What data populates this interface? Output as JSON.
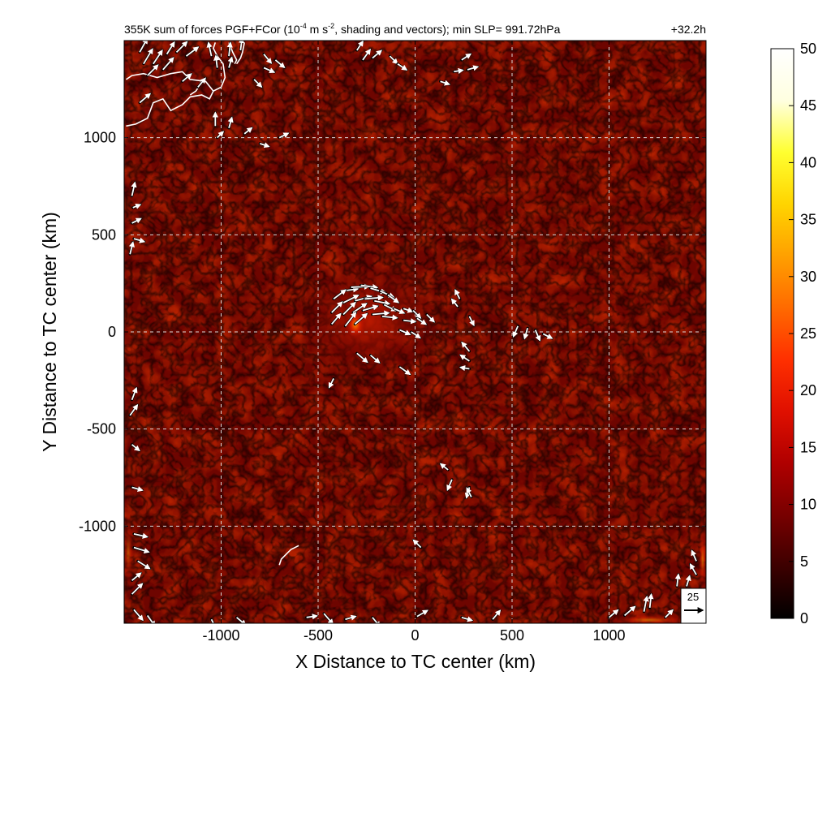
{
  "chart_data": {
    "type": "heatmap",
    "title": "355K sum of forces PGF+FCor (10",
    "title_exp1": "-4",
    "title_mid": " m s",
    "title_exp2": "-2",
    "title_tail": ", shading and vectors); min SLP= 991.72hPa",
    "time_label": "+32.2h",
    "xlabel": "X Distance to TC center (km)",
    "ylabel": "Y Distance to TC center (km)",
    "xlim": [
      -1500,
      1500
    ],
    "ylim": [
      -1500,
      1500
    ],
    "xticks": [
      -1000,
      -500,
      0,
      500,
      1000
    ],
    "xtick_labels": [
      "-1000",
      "-500",
      "0",
      "500",
      "1000"
    ],
    "yticks": [
      -1000,
      -500,
      0,
      500,
      1000
    ],
    "ytick_labels": [
      "-1000",
      "-500",
      "0",
      "500",
      "1000"
    ],
    "grid": true,
    "colorbar": {
      "min": 0,
      "max": 50,
      "ticks": [
        0,
        5,
        10,
        15,
        20,
        25,
        30,
        35,
        40,
        45,
        50
      ],
      "tick_labels": [
        "0",
        "5",
        "10",
        "15",
        "20",
        "25",
        "30",
        "35",
        "40",
        "45",
        "50"
      ],
      "colors": [
        "#000000",
        "#3c0000",
        "#780000",
        "#b00000",
        "#e01000",
        "#ff3000",
        "#ff6a00",
        "#ffa000",
        "#ffd400",
        "#ffff30",
        "#ffffe0",
        "#ffffff"
      ]
    },
    "reference_vector": {
      "value": 25,
      "label": "25"
    },
    "vectors": [
      {
        "x": -380,
        "y": 210,
        "u": 22,
        "v": 3
      },
      {
        "x": -330,
        "y": 230,
        "u": 24,
        "v": 1
      },
      {
        "x": -280,
        "y": 240,
        "u": 22,
        "v": -3
      },
      {
        "x": -230,
        "y": 225,
        "u": 20,
        "v": -6
      },
      {
        "x": -180,
        "y": 210,
        "u": 18,
        "v": -8
      },
      {
        "x": -140,
        "y": 190,
        "u": 14,
        "v": -10
      },
      {
        "x": -420,
        "y": 170,
        "u": 16,
        "v": 12
      },
      {
        "x": -370,
        "y": 150,
        "u": 20,
        "v": 10
      },
      {
        "x": -310,
        "y": 160,
        "u": 22,
        "v": 6
      },
      {
        "x": -260,
        "y": 170,
        "u": 24,
        "v": 2
      },
      {
        "x": -210,
        "y": 160,
        "u": 20,
        "v": -4
      },
      {
        "x": -160,
        "y": 140,
        "u": 16,
        "v": -8
      },
      {
        "x": -110,
        "y": 120,
        "u": 14,
        "v": -6
      },
      {
        "x": -60,
        "y": 120,
        "u": 12,
        "v": -4
      },
      {
        "x": -10,
        "y": 110,
        "u": 10,
        "v": -10
      },
      {
        "x": -430,
        "y": 100,
        "u": 14,
        "v": 14
      },
      {
        "x": -370,
        "y": 90,
        "u": 16,
        "v": 16
      },
      {
        "x": -320,
        "y": 100,
        "u": 18,
        "v": 12
      },
      {
        "x": -270,
        "y": 110,
        "u": 20,
        "v": 6
      },
      {
        "x": -220,
        "y": 90,
        "u": 22,
        "v": 2
      },
      {
        "x": -170,
        "y": 80,
        "u": 20,
        "v": -2
      },
      {
        "x": -430,
        "y": 40,
        "u": 12,
        "v": 14
      },
      {
        "x": -360,
        "y": 30,
        "u": 14,
        "v": 18
      },
      {
        "x": -310,
        "y": 40,
        "u": 16,
        "v": 14
      },
      {
        "x": -60,
        "y": 60,
        "u": 16,
        "v": -2
      },
      {
        "x": 10,
        "y": 70,
        "u": 12,
        "v": -8
      },
      {
        "x": 60,
        "y": 90,
        "u": 10,
        "v": -10
      },
      {
        "x": -80,
        "y": 10,
        "u": 14,
        "v": -6
      },
      {
        "x": -20,
        "y": 0,
        "u": 12,
        "v": -8
      },
      {
        "x": 230,
        "y": 170,
        "u": -6,
        "v": 12
      },
      {
        "x": 220,
        "y": 130,
        "u": -8,
        "v": 10
      },
      {
        "x": 280,
        "y": 80,
        "u": 6,
        "v": -12
      },
      {
        "x": 530,
        "y": 30,
        "u": -6,
        "v": -14
      },
      {
        "x": 580,
        "y": 20,
        "u": -4,
        "v": -14
      },
      {
        "x": 620,
        "y": 10,
        "u": 6,
        "v": -14
      },
      {
        "x": 660,
        "y": -10,
        "u": 12,
        "v": -6
      },
      {
        "x": 280,
        "y": -100,
        "u": -10,
        "v": 12
      },
      {
        "x": 280,
        "y": -150,
        "u": -12,
        "v": 8
      },
      {
        "x": 280,
        "y": -190,
        "u": -12,
        "v": 2
      },
      {
        "x": -300,
        "y": -110,
        "u": 14,
        "v": -12
      },
      {
        "x": -230,
        "y": -120,
        "u": 12,
        "v": -10
      },
      {
        "x": -80,
        "y": -180,
        "u": 14,
        "v": -10
      },
      {
        "x": -420,
        "y": -240,
        "u": -6,
        "v": -12
      },
      {
        "x": 170,
        "y": -710,
        "u": -10,
        "v": 8
      },
      {
        "x": 190,
        "y": -760,
        "u": -6,
        "v": -14
      },
      {
        "x": 280,
        "y": -800,
        "u": -4,
        "v": -14
      },
      {
        "x": 290,
        "y": -850,
        "u": -6,
        "v": 12
      },
      {
        "x": 30,
        "y": -1110,
        "u": -10,
        "v": 10
      },
      {
        "x": -1280,
        "y": 1430,
        "u": 10,
        "v": 16
      },
      {
        "x": -1230,
        "y": 1440,
        "u": 14,
        "v": 14
      },
      {
        "x": -1180,
        "y": 1420,
        "u": 16,
        "v": 12
      },
      {
        "x": -1350,
        "y": 1380,
        "u": 12,
        "v": 18
      },
      {
        "x": -1300,
        "y": 1350,
        "u": 14,
        "v": 16
      },
      {
        "x": -1420,
        "y": 1440,
        "u": 10,
        "v": 18
      },
      {
        "x": -1400,
        "y": 1380,
        "u": 12,
        "v": 20
      },
      {
        "x": -1380,
        "y": 1320,
        "u": 14,
        "v": 14
      },
      {
        "x": -1050,
        "y": 1420,
        "u": -4,
        "v": 18
      },
      {
        "x": -1020,
        "y": 1360,
        "u": -2,
        "v": 16
      },
      {
        "x": -960,
        "y": 1420,
        "u": 2,
        "v": 18
      },
      {
        "x": -960,
        "y": 1360,
        "u": 4,
        "v": 14
      },
      {
        "x": -1200,
        "y": 1290,
        "u": 12,
        "v": 10
      },
      {
        "x": -1120,
        "y": 1260,
        "u": 10,
        "v": 12
      },
      {
        "x": -1420,
        "y": 1180,
        "u": 14,
        "v": 12
      },
      {
        "x": -900,
        "y": 1450,
        "u": 2,
        "v": 16
      },
      {
        "x": -780,
        "y": 1430,
        "u": 10,
        "v": -12
      },
      {
        "x": -720,
        "y": 1400,
        "u": 12,
        "v": -10
      },
      {
        "x": -780,
        "y": 1360,
        "u": 14,
        "v": -6
      },
      {
        "x": -830,
        "y": 1300,
        "u": 10,
        "v": -10
      },
      {
        "x": -1030,
        "y": 1060,
        "u": 0,
        "v": 18
      },
      {
        "x": -960,
        "y": 1050,
        "u": 4,
        "v": 14
      },
      {
        "x": -880,
        "y": 1020,
        "u": 10,
        "v": 8
      },
      {
        "x": -800,
        "y": 970,
        "u": 12,
        "v": -4
      },
      {
        "x": -700,
        "y": 1000,
        "u": 12,
        "v": 6
      },
      {
        "x": -1020,
        "y": 1000,
        "u": 8,
        "v": 8
      },
      {
        "x": -300,
        "y": 1450,
        "u": 8,
        "v": 12
      },
      {
        "x": -270,
        "y": 1400,
        "u": 10,
        "v": 14
      },
      {
        "x": -220,
        "y": 1410,
        "u": 12,
        "v": 10
      },
      {
        "x": -130,
        "y": 1420,
        "u": 10,
        "v": -10
      },
      {
        "x": -90,
        "y": 1380,
        "u": 12,
        "v": -8
      },
      {
        "x": 240,
        "y": 1400,
        "u": 12,
        "v": 8
      },
      {
        "x": 270,
        "y": 1350,
        "u": 14,
        "v": 4
      },
      {
        "x": 200,
        "y": 1340,
        "u": 12,
        "v": 2
      },
      {
        "x": 130,
        "y": 1290,
        "u": 12,
        "v": -4
      },
      {
        "x": -1460,
        "y": 700,
        "u": 4,
        "v": 18
      },
      {
        "x": -1455,
        "y": 640,
        "u": 10,
        "v": 4
      },
      {
        "x": -1460,
        "y": 560,
        "u": 12,
        "v": 6
      },
      {
        "x": -1450,
        "y": 480,
        "u": 14,
        "v": -4
      },
      {
        "x": -1470,
        "y": 400,
        "u": 4,
        "v": 16
      },
      {
        "x": -1460,
        "y": -350,
        "u": 6,
        "v": 16
      },
      {
        "x": -1470,
        "y": -430,
        "u": 10,
        "v": 14
      },
      {
        "x": -1460,
        "y": -580,
        "u": 10,
        "v": -8
      },
      {
        "x": -1460,
        "y": -800,
        "u": 14,
        "v": -4
      },
      {
        "x": -1450,
        "y": -1040,
        "u": 18,
        "v": -4
      },
      {
        "x": -1450,
        "y": -1110,
        "u": 20,
        "v": -6
      },
      {
        "x": -1430,
        "y": -1180,
        "u": 16,
        "v": -10
      },
      {
        "x": -1460,
        "y": -1280,
        "u": 12,
        "v": 10
      },
      {
        "x": -1460,
        "y": -1350,
        "u": 14,
        "v": 14
      },
      {
        "x": -1450,
        "y": -1430,
        "u": 12,
        "v": -14
      },
      {
        "x": -1380,
        "y": -1460,
        "u": 10,
        "v": -14
      },
      {
        "x": -1050,
        "y": -1480,
        "u": 8,
        "v": -16
      },
      {
        "x": -920,
        "y": -1470,
        "u": 12,
        "v": -10
      },
      {
        "x": -560,
        "y": -1470,
        "u": 14,
        "v": 2
      },
      {
        "x": -470,
        "y": -1450,
        "u": 12,
        "v": -14
      },
      {
        "x": -360,
        "y": -1480,
        "u": 14,
        "v": 4
      },
      {
        "x": -220,
        "y": -1470,
        "u": 10,
        "v": -12
      },
      {
        "x": 10,
        "y": -1465,
        "u": 14,
        "v": 8
      },
      {
        "x": 240,
        "y": -1470,
        "u": 14,
        "v": -4
      },
      {
        "x": 400,
        "y": -1480,
        "u": 10,
        "v": 12
      },
      {
        "x": 1000,
        "y": -1470,
        "u": 12,
        "v": 10
      },
      {
        "x": 1080,
        "y": -1460,
        "u": 14,
        "v": 12
      },
      {
        "x": 1180,
        "y": -1440,
        "u": 4,
        "v": 20
      },
      {
        "x": 1210,
        "y": -1420,
        "u": 2,
        "v": 18
      },
      {
        "x": 1290,
        "y": -1470,
        "u": 10,
        "v": 10
      },
      {
        "x": 1350,
        "y": -1310,
        "u": 2,
        "v": 16
      },
      {
        "x": 1400,
        "y": -1310,
        "u": 4,
        "v": 14
      },
      {
        "x": 1450,
        "y": -1250,
        "u": -8,
        "v": 14
      },
      {
        "x": 1450,
        "y": -1180,
        "u": -6,
        "v": 14
      }
    ],
    "contours": [
      [
        [
          -1490,
          1060
        ],
        [
          -1440,
          1070
        ],
        [
          -1380,
          1100
        ],
        [
          -1350,
          1180
        ],
        [
          -1300,
          1200
        ],
        [
          -1260,
          1140
        ],
        [
          -1200,
          1170
        ],
        [
          -1160,
          1210
        ],
        [
          -1100,
          1220
        ],
        [
          -1060,
          1200
        ],
        [
          -1040,
          1240
        ],
        [
          -1080,
          1290
        ],
        [
          -1160,
          1300
        ],
        [
          -1200,
          1340
        ],
        [
          -1260,
          1330
        ],
        [
          -1330,
          1310
        ],
        [
          -1400,
          1330
        ],
        [
          -1460,
          1320
        ],
        [
          -1490,
          1300
        ]
      ],
      [
        [
          -1160,
          1220
        ],
        [
          -1130,
          1240
        ],
        [
          -1110,
          1270
        ],
        [
          -1100,
          1300
        ]
      ],
      [
        [
          -1040,
          1240
        ],
        [
          -1000,
          1260
        ],
        [
          -980,
          1310
        ],
        [
          -990,
          1380
        ],
        [
          -1020,
          1420
        ],
        [
          -1040,
          1460
        ],
        [
          -1030,
          1490
        ]
      ],
      [
        [
          -960,
          1490
        ],
        [
          -940,
          1440
        ],
        [
          -920,
          1400
        ],
        [
          -930,
          1380
        ]
      ],
      [
        [
          -880,
          1490
        ],
        [
          -890,
          1440
        ],
        [
          -900,
          1410
        ],
        [
          -920,
          1380
        ]
      ],
      [
        [
          -700,
          -1200
        ],
        [
          -690,
          -1170
        ],
        [
          -670,
          -1150
        ],
        [
          -640,
          -1120
        ],
        [
          -600,
          -1100
        ]
      ]
    ]
  }
}
